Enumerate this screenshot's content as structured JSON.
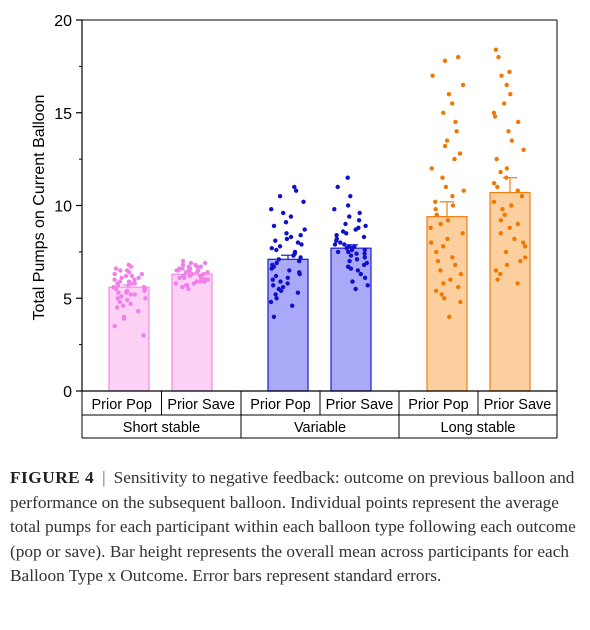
{
  "chart_data": {
    "type": "bar",
    "ylabel": "Total Pumps on Current Balloon",
    "ylim": [
      0,
      20
    ],
    "yticks": [
      0,
      5,
      10,
      15,
      20
    ],
    "grid": false,
    "legend": "none",
    "groups": [
      {
        "label": "Short stable",
        "color_fill": "#fdd0f5",
        "color_edge": "#f08ce6",
        "color_points": "#f080e8",
        "bars": [
          {
            "label": "Prior Pop",
            "mean": 5.6,
            "se": 0.12,
            "points": [
              6.8,
              6.7,
              6.6,
              6.5,
              6.5,
              6.4,
              6.3,
              6.3,
              6.2,
              6.2,
              6.1,
              6.1,
              6.0,
              6.0,
              5.9,
              5.9,
              5.8,
              5.8,
              5.8,
              5.7,
              5.7,
              5.6,
              5.6,
              5.5,
              5.5,
              5.4,
              5.4,
              5.3,
              5.3,
              5.2,
              5.2,
              5.1,
              5.0,
              5.0,
              4.9,
              4.8,
              4.7,
              4.6,
              4.5,
              4.3,
              4.0,
              3.9,
              3.5,
              3.0
            ]
          },
          {
            "label": "Prior Save",
            "mean": 6.3,
            "se": 0.06,
            "points": [
              7.0,
              6.9,
              6.9,
              6.8,
              6.8,
              6.7,
              6.7,
              6.7,
              6.6,
              6.6,
              6.6,
              6.5,
              6.5,
              6.5,
              6.5,
              6.4,
              6.4,
              6.4,
              6.4,
              6.3,
              6.3,
              6.3,
              6.3,
              6.2,
              6.2,
              6.2,
              6.2,
              6.1,
              6.1,
              6.1,
              6.0,
              6.0,
              6.0,
              5.9,
              5.9,
              5.9,
              5.8,
              5.8,
              5.7,
              5.7,
              5.6,
              5.5
            ]
          }
        ]
      },
      {
        "label": "Variable",
        "color_fill": "#a9a9f8",
        "color_edge": "#1a1ad6",
        "color_points": "#1010cc",
        "bars": [
          {
            "label": "Prior Pop",
            "mean": 7.1,
            "se": 0.22,
            "points": [
              11.0,
              10.8,
              10.5,
              10.2,
              9.8,
              9.6,
              9.4,
              9.1,
              8.9,
              8.7,
              8.5,
              8.4,
              8.3,
              8.2,
              8.1,
              8.0,
              7.9,
              7.8,
              7.7,
              7.6,
              7.5,
              7.4,
              7.3,
              7.2,
              7.1,
              7.0,
              6.9,
              6.8,
              6.7,
              6.6,
              6.5,
              6.4,
              6.3,
              6.2,
              6.1,
              6.0,
              5.9,
              5.8,
              5.7,
              5.6,
              5.5,
              5.4,
              5.3,
              5.2,
              5.0,
              4.8,
              4.6,
              4.0
            ]
          },
          {
            "label": "Prior Save",
            "mean": 7.7,
            "se": 0.18,
            "points": [
              11.5,
              11.0,
              10.5,
              10.0,
              9.8,
              9.6,
              9.4,
              9.2,
              9.0,
              8.9,
              8.8,
              8.7,
              8.6,
              8.5,
              8.4,
              8.3,
              8.2,
              8.1,
              8.0,
              7.9,
              7.9,
              7.8,
              7.8,
              7.7,
              7.7,
              7.6,
              7.6,
              7.5,
              7.5,
              7.4,
              7.4,
              7.3,
              7.2,
              7.1,
              7.0,
              6.9,
              6.8,
              6.7,
              6.6,
              6.5,
              6.3,
              6.1,
              5.9,
              5.7,
              5.5
            ]
          }
        ]
      },
      {
        "label": "Long stable",
        "color_fill": "#fccf9f",
        "color_edge": "#f07f10",
        "color_points": "#f07800",
        "bars": [
          {
            "label": "Prior Pop",
            "mean": 9.4,
            "se": 0.8,
            "points": [
              18.0,
              17.8,
              17.0,
              16.5,
              16.0,
              15.5,
              15.0,
              14.5,
              14.0,
              13.5,
              13.2,
              12.8,
              12.5,
              12.0,
              11.5,
              11.0,
              10.8,
              10.5,
              10.2,
              10.0,
              9.8,
              9.5,
              9.2,
              9.0,
              8.8,
              8.5,
              8.2,
              8.0,
              7.8,
              7.5,
              7.2,
              7.0,
              6.8,
              6.5,
              6.3,
              6.0,
              5.8,
              5.6,
              5.4,
              5.2,
              5.0,
              4.8,
              4.0
            ]
          },
          {
            "label": "Prior Save",
            "mean": 10.7,
            "se": 0.8,
            "points": [
              18.4,
              18.0,
              17.2,
              17.0,
              16.5,
              16.0,
              15.5,
              15.0,
              14.8,
              14.5,
              14.0,
              13.5,
              13.0,
              12.5,
              12.0,
              11.8,
              11.5,
              11.2,
              11.0,
              10.8,
              10.5,
              10.2,
              10.0,
              9.8,
              9.5,
              9.2,
              9.0,
              8.8,
              8.5,
              8.2,
              8.0,
              7.8,
              7.5,
              7.2,
              7.0,
              6.8,
              6.5,
              6.3,
              6.0,
              5.8
            ]
          }
        ]
      }
    ]
  },
  "caption": {
    "label": "FIGURE 4",
    "separator": "|",
    "text": "Sensitivity to negative feedback: outcome on previous balloon and performance on the subsequent balloon. Individual points represent the average total pumps for each participant within each balloon type following each outcome (pop or save). Bar height represents the overall mean across participants for each Balloon Type x Outcome. Error bars represent standard errors."
  }
}
